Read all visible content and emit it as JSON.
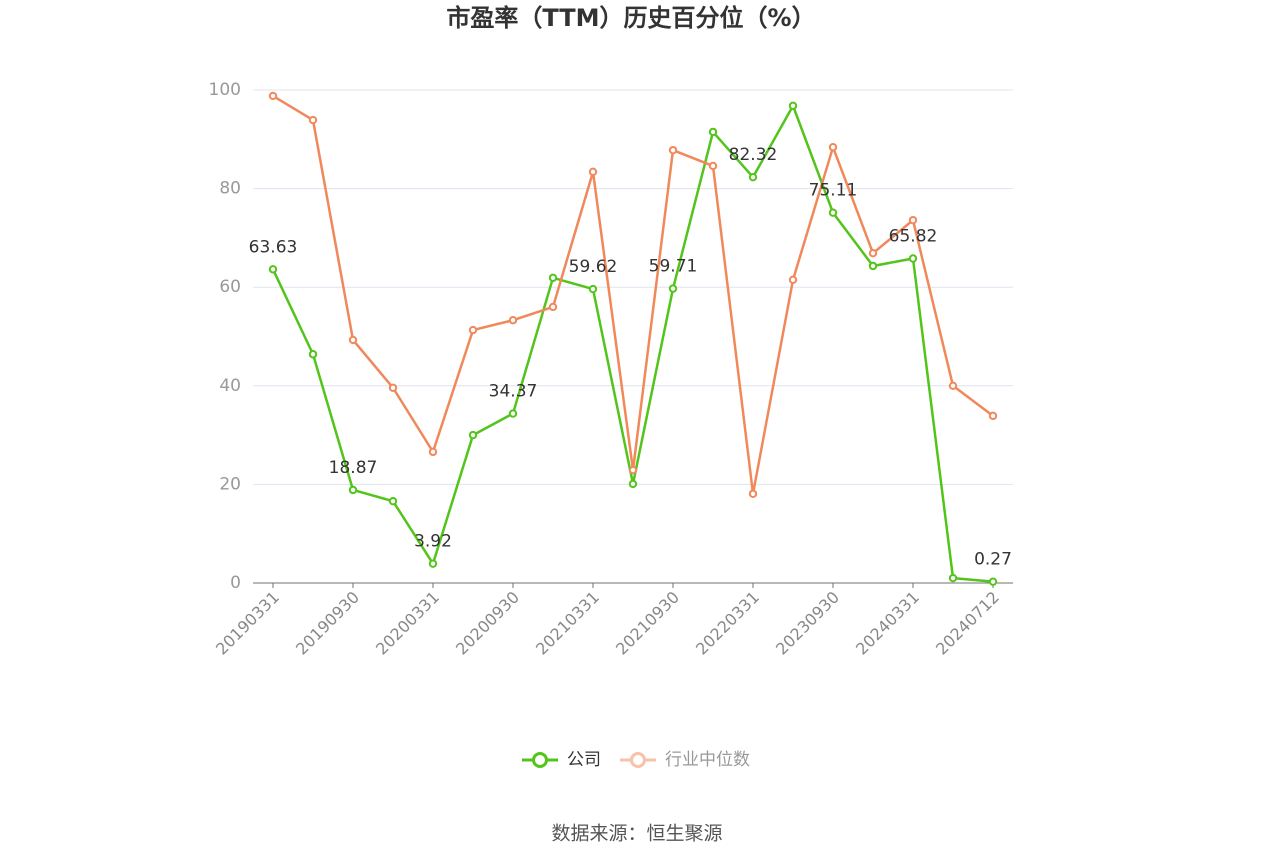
{
  "chart_data": {
    "type": "line",
    "title": "市盈率（TTM）历史百分位（%）",
    "source": "数据来源：恒生聚源",
    "categories": [
      "20190331",
      "",
      "20190930",
      "",
      "20200331",
      "",
      "20200930",
      "",
      "20210331",
      "",
      "20210930",
      "",
      "20220331",
      "",
      "20230930",
      "",
      "20240331",
      "",
      "20240712"
    ],
    "yticks": [
      0,
      20,
      40,
      60,
      80,
      100
    ],
    "ylim": [
      0,
      100
    ],
    "grid": true,
    "legend_position": "bottom",
    "series": [
      {
        "name": "公司",
        "color": "#52c41a",
        "legend_color": "#52c41a",
        "legend_text_color": "#333333",
        "values": [
          63.63,
          46.4,
          18.87,
          16.6,
          3.92,
          30.0,
          34.37,
          61.9,
          59.62,
          20.1,
          59.71,
          91.5,
          82.32,
          96.8,
          75.11,
          64.3,
          65.82,
          1.0,
          0.27
        ],
        "labels": [
          "63.63",
          null,
          "18.87",
          null,
          "3.92",
          null,
          "34.37",
          null,
          "59.62",
          null,
          "59.71",
          null,
          "82.32",
          null,
          "75.11",
          null,
          "65.82",
          null,
          "0.27"
        ]
      },
      {
        "name": "行业中位数",
        "color": "#f0885a",
        "legend_color": "#f7c1aa",
        "legend_text_color": "#999999",
        "values": [
          98.8,
          93.9,
          49.3,
          39.6,
          26.6,
          51.3,
          53.3,
          56.0,
          83.4,
          22.9,
          87.8,
          84.6,
          18.1,
          61.5,
          88.4,
          66.9,
          73.6,
          40.0,
          33.9
        ]
      }
    ]
  }
}
